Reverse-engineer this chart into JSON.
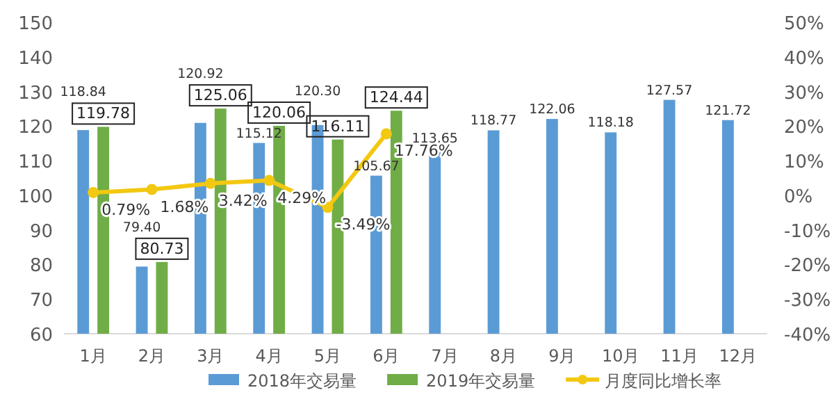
{
  "chart_data": {
    "type": "bar",
    "categories": [
      "1月",
      "2月",
      "3月",
      "4月",
      "5月",
      "6月",
      "7月",
      "8月",
      "9月",
      "10月",
      "11月",
      "12月"
    ],
    "series": [
      {
        "name": "2018年交易量",
        "color": "#5b9bd5",
        "values": [
          118.84,
          79.4,
          120.92,
          115.12,
          120.3,
          105.67,
          113.65,
          118.77,
          122.06,
          118.18,
          127.57,
          121.72
        ],
        "value_labels": [
          "118.84",
          "79.40",
          "120.92",
          "115.12",
          "120.30",
          "105.67",
          "113.65",
          "118.77",
          "122.06",
          "118.18",
          "127.57",
          "121.72"
        ]
      },
      {
        "name": "2019年交易量",
        "color": "#70ad47",
        "values": [
          119.78,
          80.73,
          125.06,
          120.06,
          116.11,
          124.44,
          null,
          null,
          null,
          null,
          null,
          null
        ],
        "value_labels": [
          "119.78",
          "80.73",
          "125.06",
          "120.06",
          "116.11",
          "124.44",
          null,
          null,
          null,
          null,
          null,
          null
        ]
      },
      {
        "name": "月度同比增长率",
        "type": "line",
        "axis": "y2",
        "marker": "circle",
        "color": "#f2c811",
        "values": [
          0.79,
          1.68,
          3.42,
          4.29,
          -3.49,
          17.76,
          null,
          null,
          null,
          null,
          null,
          null
        ],
        "value_labels": [
          "0.79%",
          "1.68%",
          "3.42%",
          "4.29%",
          "-3.49%",
          "17.76%",
          null,
          null,
          null,
          null,
          null,
          null
        ]
      }
    ],
    "ylim": [
      60,
      150
    ],
    "yticks": [
      60,
      70,
      80,
      90,
      100,
      110,
      120,
      130,
      140,
      150
    ],
    "y2lim": [
      -40,
      50
    ],
    "y2ticks": [
      {
        "value": -40,
        "label": "-40%"
      },
      {
        "value": -30,
        "label": "-30%"
      },
      {
        "value": -20,
        "label": "-20%"
      },
      {
        "value": -10,
        "label": "-10%"
      },
      {
        "value": 0,
        "label": "0%"
      },
      {
        "value": 10,
        "label": "10%"
      },
      {
        "value": 20,
        "label": "20%"
      },
      {
        "value": 30,
        "label": "30%"
      },
      {
        "value": 40,
        "label": "40%"
      },
      {
        "value": 50,
        "label": "50%"
      }
    ],
    "legend": "bottom"
  }
}
